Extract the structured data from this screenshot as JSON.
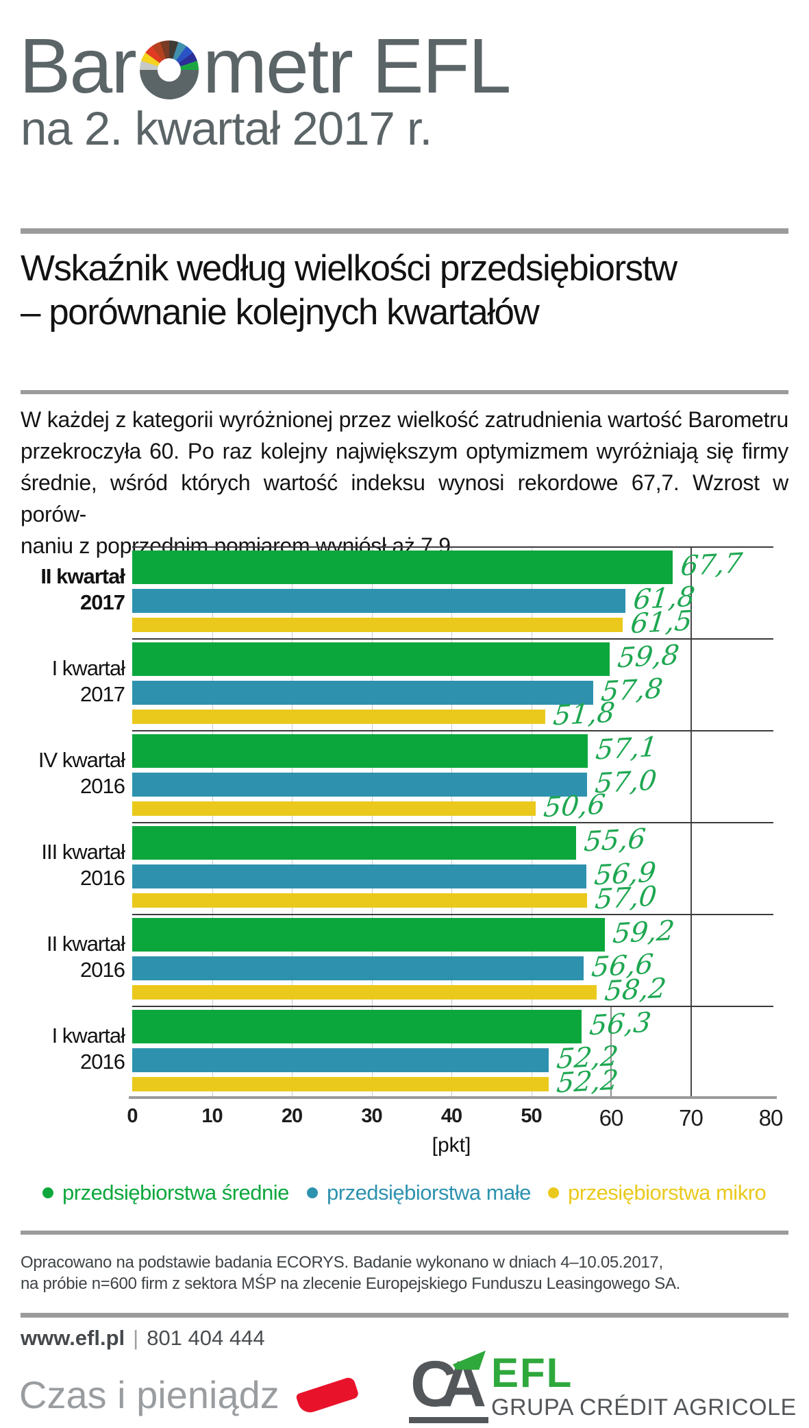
{
  "header": {
    "title_pre": "Bar",
    "title_post": "metr EFL",
    "title_line2": "na 2. kwartał 2017 r."
  },
  "subtitle": {
    "line1": "Wskaźnik według wielkości przedsiębiorstw",
    "line2": "– porównanie kolejnych kwartałów"
  },
  "intro": {
    "lines": [
      "W każdej z kategorii wyróżnionej przez wielkość zatrudnienia wartość Barometru",
      "przekroczyła 60. Po raz kolejny największym optymizmem wyróżniają się firmy",
      "średnie, wśród których wartość indeksu wynosi rekordowe 67,7. Wzrost w porów-",
      "naniu z poprzednim pomiarem wyniósł aż 7,9."
    ]
  },
  "chart_data": {
    "type": "bar",
    "orientation": "horizontal",
    "xlabel": "[pkt]",
    "xlim": [
      0,
      80
    ],
    "ticks": [
      0,
      10,
      20,
      30,
      40,
      50,
      60,
      70,
      80
    ],
    "grid": "vertical, every 10",
    "legend_position": "bottom",
    "categories": [
      "II kwartał 2017",
      "I kwartał 2017",
      "IV kwartał 2016",
      "III kwartał 2016",
      "II kwartał 2016",
      "I kwartał 2016"
    ],
    "category_lines": [
      {
        "lines": [
          "II kwartał",
          "2017"
        ],
        "bold": true
      },
      {
        "lines": [
          "I kwartał",
          "2017"
        ],
        "bold": false
      },
      {
        "lines": [
          "IV kwartał",
          "2016"
        ],
        "bold": false
      },
      {
        "lines": [
          "III kwartał",
          "2016"
        ],
        "bold": false
      },
      {
        "lines": [
          "II kwartał",
          "2016"
        ],
        "bold": false
      },
      {
        "lines": [
          "I kwartał",
          "2016"
        ],
        "bold": false
      }
    ],
    "series": [
      {
        "name": "przedsiębiorstwa średnie",
        "color": "#0CA73C",
        "values": [
          67.7,
          59.8,
          57.1,
          55.6,
          59.2,
          56.3
        ],
        "labels": [
          "67,7",
          "59,8",
          "57,1",
          "55,6",
          "59,2",
          "56,3"
        ]
      },
      {
        "name": "przedsiębiorstwa małe",
        "color": "#2E92AF",
        "values": [
          61.8,
          57.8,
          57.0,
          56.9,
          56.6,
          52.2
        ],
        "labels": [
          "61,8",
          "57,8",
          "57,0",
          "56,9",
          "56,6",
          "52,2"
        ]
      },
      {
        "name": "przesiębiorstwa mikro",
        "color": "#EAC91C",
        "values": [
          61.5,
          51.8,
          50.6,
          57.0,
          58.2,
          52.2
        ],
        "labels": [
          "61,5",
          "51,8",
          "50,6",
          "57,0",
          "58,2",
          "52,2"
        ]
      }
    ],
    "value_label_color": "#1EA751",
    "gridlines": {
      "light": [
        10,
        20,
        30,
        40,
        50
      ],
      "dark_full": 70,
      "partial": {
        "x": 60,
        "group_index": 5
      }
    }
  },
  "footnote": {
    "line1": "Opracowano na podstawie badania ECORYS. Badanie wykonano w dniach 4–10.05.2017,",
    "line2": "na próbie n=600 firm z sektora MŚP na zlecenie Europejskiego Funduszu Leasingowego SA."
  },
  "contact": {
    "website": "www.efl.pl",
    "divider": "|",
    "phone": "801 404 444"
  },
  "brand": {
    "slogan": "Czas i pieniądz",
    "monogram": "CA",
    "name": "EFL",
    "group": "GRUPA CRÉDIT AGRICOLE"
  },
  "colors": {
    "accent_green": "#0CA73C",
    "accent_blue": "#2E92AF",
    "accent_yellow": "#EAC91C",
    "title_gray": "#5B6467",
    "rule_gray": "#9B9B9B",
    "brand_red": "#E8132B",
    "logo_green": "#2FA83C",
    "logo_gray": "#54575A",
    "gauge_segments": [
      "#C5C9C7",
      "#F5D31F",
      "#E03A23",
      "#B5421F",
      "#7A3B24",
      "#403A35",
      "#4190AD",
      "#2A52C4",
      "#2C2D96",
      "#1BA643"
    ],
    "gauge_body": "#5B6467"
  }
}
